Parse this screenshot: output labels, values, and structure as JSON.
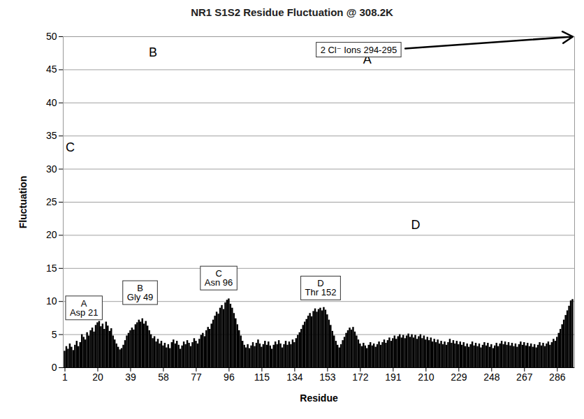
{
  "chart_data": {
    "type": "bar",
    "title": "NR1 S1S2 Residue Fluctuation @ 308.2K",
    "x_label": "Residue",
    "y_label": "Fluctuation",
    "color": "#000000",
    "grid": true,
    "xlim": [
      0,
      296
    ],
    "ylim": [
      0,
      50
    ],
    "xticks": [
      1,
      20,
      39,
      58,
      77,
      96,
      115,
      134,
      153,
      172,
      191,
      210,
      229,
      248,
      267,
      286
    ],
    "yticks": [
      0,
      5,
      10,
      15,
      20,
      25,
      30,
      35,
      40,
      45,
      50
    ],
    "x": [
      1,
      2,
      3,
      4,
      5,
      6,
      7,
      8,
      9,
      10,
      11,
      12,
      13,
      14,
      15,
      16,
      17,
      18,
      19,
      20,
      21,
      22,
      23,
      24,
      25,
      26,
      27,
      28,
      29,
      30,
      31,
      32,
      33,
      34,
      35,
      36,
      37,
      38,
      39,
      40,
      41,
      42,
      43,
      44,
      45,
      46,
      47,
      48,
      49,
      50,
      51,
      52,
      53,
      54,
      55,
      56,
      57,
      58,
      59,
      60,
      61,
      62,
      63,
      64,
      65,
      66,
      67,
      68,
      69,
      70,
      71,
      72,
      73,
      74,
      75,
      76,
      77,
      78,
      79,
      80,
      81,
      82,
      83,
      84,
      85,
      86,
      87,
      88,
      89,
      90,
      91,
      92,
      93,
      94,
      95,
      96,
      97,
      98,
      99,
      100,
      101,
      102,
      103,
      104,
      105,
      106,
      107,
      108,
      109,
      110,
      111,
      112,
      113,
      114,
      115,
      116,
      117,
      118,
      119,
      120,
      121,
      122,
      123,
      124,
      125,
      126,
      127,
      128,
      129,
      130,
      131,
      132,
      133,
      134,
      135,
      136,
      137,
      138,
      139,
      140,
      141,
      142,
      143,
      144,
      145,
      146,
      147,
      148,
      149,
      150,
      151,
      152,
      153,
      154,
      155,
      156,
      157,
      158,
      159,
      160,
      161,
      162,
      163,
      164,
      165,
      166,
      167,
      168,
      169,
      170,
      171,
      172,
      173,
      174,
      175,
      176,
      177,
      178,
      179,
      180,
      181,
      182,
      183,
      184,
      185,
      186,
      187,
      188,
      189,
      190,
      191,
      192,
      193,
      194,
      195,
      196,
      197,
      198,
      199,
      200,
      201,
      202,
      203,
      204,
      205,
      206,
      207,
      208,
      209,
      210,
      211,
      212,
      213,
      214,
      215,
      216,
      217,
      218,
      219,
      220,
      221,
      222,
      223,
      224,
      225,
      226,
      227,
      228,
      229,
      230,
      231,
      232,
      233,
      234,
      235,
      236,
      237,
      238,
      239,
      240,
      241,
      242,
      243,
      244,
      245,
      246,
      247,
      248,
      249,
      250,
      251,
      252,
      253,
      254,
      255,
      256,
      257,
      258,
      259,
      260,
      261,
      262,
      263,
      264,
      265,
      266,
      267,
      268,
      269,
      270,
      271,
      272,
      273,
      274,
      275,
      276,
      277,
      278,
      279,
      280,
      281,
      282,
      283,
      284,
      285,
      286,
      287,
      288,
      289,
      290,
      291,
      292,
      293,
      294,
      295
    ],
    "values": [
      2.5,
      3.2,
      2.8,
      3.6,
      3.1,
      2.6,
      3.4,
      4.0,
      3.2,
      3.8,
      5.0,
      4.6,
      4.2,
      5.3,
      4.8,
      5.6,
      6.0,
      5.4,
      6.4,
      6.8,
      7.0,
      6.2,
      6.6,
      5.8,
      6.9,
      6.3,
      5.5,
      5.9,
      4.8,
      4.2,
      3.6,
      3.1,
      2.7,
      2.9,
      3.4,
      4.1,
      4.8,
      5.2,
      5.6,
      6.0,
      5.7,
      6.5,
      6.8,
      7.2,
      6.9,
      7.4,
      6.6,
      7.0,
      6.3,
      5.6,
      5.0,
      4.4,
      4.7,
      3.9,
      4.3,
      3.6,
      4.0,
      3.3,
      3.7,
      3.0,
      3.5,
      2.9,
      3.8,
      4.2,
      3.6,
      4.0,
      3.4,
      2.8,
      3.3,
      3.9,
      3.5,
      4.1,
      3.7,
      3.2,
      3.8,
      4.4,
      4.0,
      3.6,
      4.3,
      4.9,
      5.2,
      4.7,
      5.6,
      6.1,
      5.8,
      6.6,
      7.2,
      7.8,
      8.4,
      8.1,
      9.0,
      9.4,
      8.8,
      9.8,
      10.2,
      10.4,
      9.6,
      9.0,
      8.2,
      7.4,
      6.5,
      5.6,
      4.8,
      4.0,
      3.4,
      3.0,
      3.5,
      2.9,
      3.3,
      3.8,
      3.2,
      3.7,
      4.2,
      3.6,
      3.1,
      3.5,
      4.0,
      3.4,
      3.9,
      3.3,
      2.8,
      3.4,
      3.9,
      3.5,
      4.1,
      3.6,
      3.0,
      3.5,
      4.0,
      3.4,
      3.9,
      3.5,
      4.2,
      3.8,
      4.4,
      4.9,
      5.3,
      5.8,
      6.4,
      6.9,
      7.3,
      7.8,
      8.2,
      7.7,
      8.5,
      8.9,
      8.4,
      8.8,
      9.0,
      8.6,
      9.1,
      8.7,
      8.0,
      7.2,
      6.4,
      5.5,
      4.8,
      4.0,
      3.4,
      3.0,
      3.5,
      4.1,
      4.6,
      5.2,
      5.6,
      6.0,
      5.7,
      6.1,
      5.4,
      4.8,
      4.2,
      3.6,
      3.2,
      3.7,
      3.3,
      2.9,
      3.4,
      3.8,
      3.3,
      3.6,
      3.1,
      3.5,
      3.9,
      3.4,
      3.8,
      4.2,
      3.7,
      4.1,
      4.5,
      4.0,
      4.4,
      4.8,
      4.3,
      4.7,
      5.0,
      4.5,
      4.9,
      4.4,
      4.8,
      5.1,
      4.6,
      5.0,
      4.5,
      4.9,
      4.3,
      4.7,
      5.0,
      4.4,
      4.8,
      4.2,
      4.6,
      4.1,
      4.5,
      3.9,
      4.3,
      3.8,
      4.2,
      3.6,
      4.0,
      3.5,
      3.9,
      3.4,
      3.8,
      4.3,
      3.7,
      4.1,
      3.6,
      4.0,
      3.5,
      3.9,
      3.4,
      3.8,
      3.2,
      3.6,
      3.1,
      3.5,
      3.9,
      3.3,
      3.7,
      3.2,
      3.6,
      3.0,
      3.4,
      3.8,
      3.3,
      3.7,
      3.1,
      3.5,
      2.9,
      3.3,
      3.7,
      3.2,
      3.6,
      4.0,
      3.5,
      3.9,
      3.4,
      3.8,
      3.3,
      3.7,
      3.2,
      3.6,
      3.1,
      3.5,
      3.9,
      3.4,
      3.8,
      3.3,
      3.7,
      3.2,
      3.6,
      3.1,
      3.5,
      3.0,
      3.4,
      3.8,
      3.3,
      3.7,
      3.2,
      3.6,
      3.9,
      3.4,
      3.8,
      4.3,
      4.0,
      4.6,
      5.2,
      5.8,
      6.5,
      7.2,
      7.9,
      8.6,
      9.3,
      10.1,
      10.3
    ],
    "callouts": [
      {
        "label": "A",
        "text": "Asp 21",
        "x": 12,
        "y": 9.0
      },
      {
        "label": "B",
        "text": "Gly 49",
        "x": 44.5,
        "y": 11.3
      },
      {
        "label": "C",
        "text": "Asn 96",
        "x": 90,
        "y": 13.5
      },
      {
        "label": "D",
        "text": "Thr 152",
        "x": 149,
        "y": 12.0
      }
    ],
    "ion_note": {
      "text": "2 Cl⁻ Ions 294-295",
      "x": 171,
      "y": 48.0,
      "arrow": {
        "x1": 198,
        "y1": 48.2,
        "x2": 295,
        "y2": 50
      }
    },
    "structure_labels": [
      {
        "text": "A",
        "x": 176,
        "y": 46.5
      },
      {
        "text": "B",
        "x": 52,
        "y": 47.6
      },
      {
        "text": "C",
        "x": 4,
        "y": 33.3
      },
      {
        "text": "D",
        "x": 204,
        "y": 21.5
      }
    ]
  }
}
